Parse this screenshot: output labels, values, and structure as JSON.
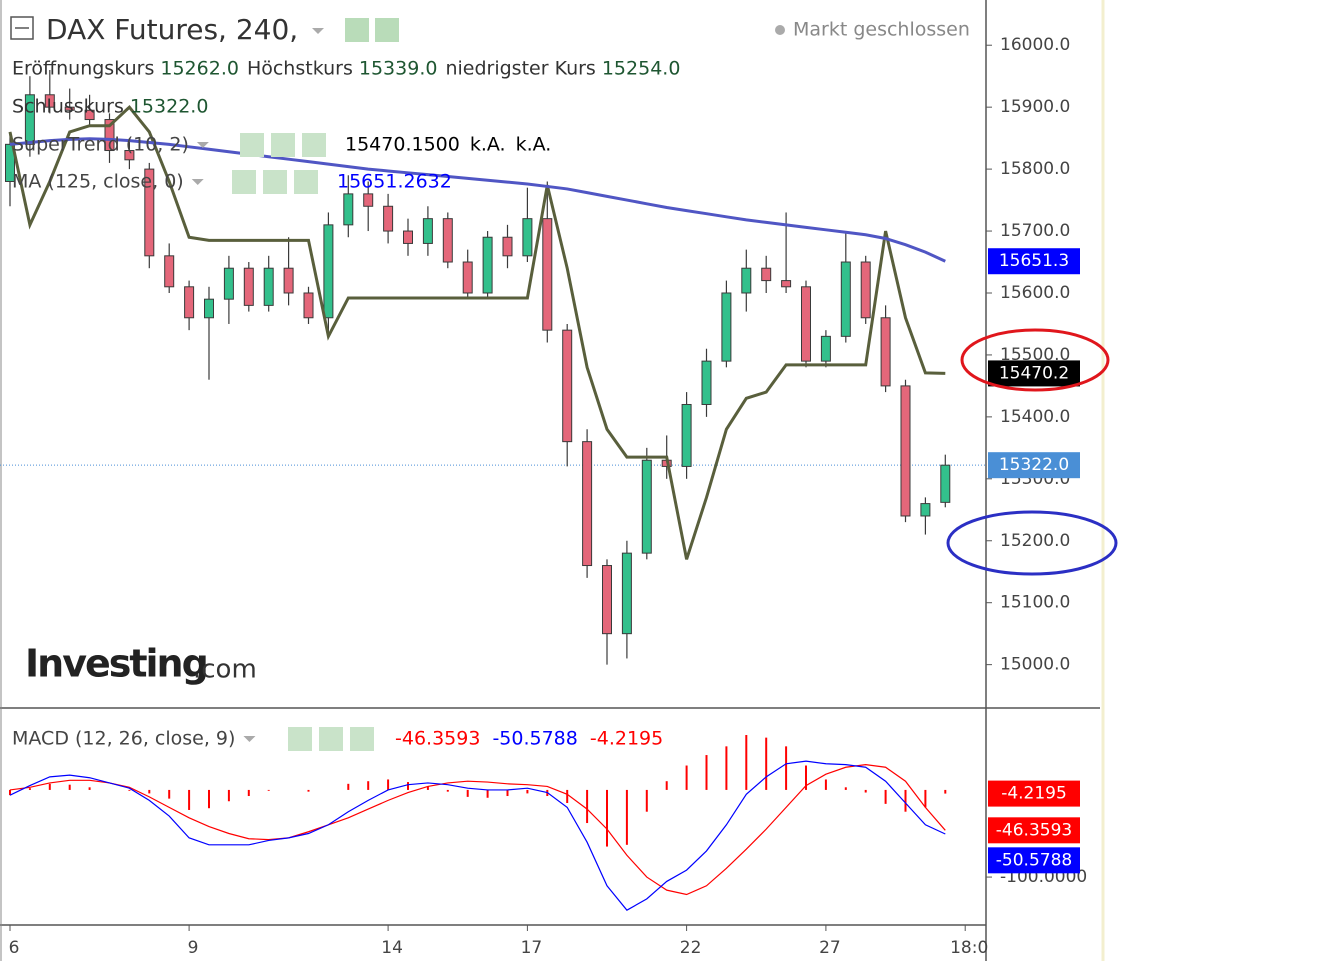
{
  "chart_data": [
    {
      "type": "candlestick",
      "title": "DAX Futures, 240,",
      "status": "Markt geschlossen",
      "watermark": {
        "brand": "Investing",
        "suffix": ".com"
      },
      "ohlc_legend": [
        {
          "name": "Eröffnungskurs",
          "value": 15262,
          "value_label": "15262.0"
        },
        {
          "name": "Höchstkurs",
          "value": 15339,
          "value_label": "15339.0"
        },
        {
          "name": "niedrigster Kurs",
          "value": 15254,
          "value_label": "15254.0"
        },
        {
          "name": "Schlusskurs",
          "value": 15322,
          "value_label": "15322.0"
        }
      ],
      "categories": [
        "6",
        null,
        null,
        null,
        null,
        null,
        null,
        null,
        null,
        "9",
        null,
        null,
        null,
        null,
        null,
        null,
        null,
        null,
        null,
        "14",
        null,
        null,
        null,
        null,
        null,
        null,
        "17",
        null,
        null,
        null,
        null,
        null,
        null,
        null,
        "22",
        null,
        null,
        null,
        null,
        null,
        null,
        "27",
        null,
        null,
        null,
        null,
        null,
        null,
        "18:0"
      ],
      "open": [
        15780,
        15840,
        15920,
        15900,
        15895,
        15880,
        15830,
        15800,
        15660,
        15610,
        15560,
        15590,
        15640,
        15580,
        15640,
        15600,
        15560,
        15710,
        15760,
        15740,
        15700,
        15680,
        15720,
        15650,
        15600,
        15690,
        15660,
        15720,
        15540,
        15360,
        15160,
        15050,
        15180,
        15330,
        15320,
        15420,
        15490,
        15600,
        15640,
        15620,
        15610,
        15490,
        15530,
        15650,
        15560,
        15450,
        15240,
        15262,
        null
      ],
      "high": [
        15860,
        15950,
        15960,
        15930,
        15920,
        15890,
        15850,
        15810,
        15680,
        15620,
        15610,
        15660,
        15650,
        15660,
        15690,
        15610,
        15730,
        15790,
        15780,
        15760,
        15720,
        15740,
        15730,
        15670,
        15700,
        15710,
        15770,
        15780,
        15550,
        15380,
        15170,
        15200,
        15350,
        15370,
        15440,
        15510,
        15620,
        15670,
        15660,
        15730,
        15620,
        15540,
        15700,
        15660,
        15580,
        15460,
        15270,
        15339,
        null
      ],
      "low": [
        15740,
        15820,
        15890,
        15880,
        15870,
        15810,
        15800,
        15640,
        15600,
        15540,
        15460,
        15550,
        15570,
        15570,
        15580,
        15550,
        15530,
        15690,
        15700,
        15680,
        15660,
        15660,
        15640,
        15590,
        15590,
        15640,
        15650,
        15520,
        15320,
        15140,
        15000,
        15010,
        15170,
        15300,
        15300,
        15400,
        15480,
        15570,
        15600,
        15600,
        15480,
        15480,
        15520,
        15550,
        15440,
        15230,
        15210,
        15254,
        null
      ],
      "close": [
        15840,
        15920,
        15900,
        15895,
        15880,
        15830,
        15815,
        15660,
        15610,
        15560,
        15590,
        15640,
        15580,
        15640,
        15600,
        15560,
        15710,
        15760,
        15740,
        15700,
        15680,
        15720,
        15650,
        15600,
        15690,
        15660,
        15720,
        15540,
        15360,
        15160,
        15050,
        15180,
        15330,
        15320,
        15420,
        15490,
        15600,
        15640,
        15620,
        15610,
        15490,
        15530,
        15650,
        15560,
        15450,
        15240,
        15260,
        15322,
        null
      ],
      "up_color": "#33c08c",
      "down_color": "#e4677a",
      "close_axis_label": "15322.0",
      "close_axis_color": "#4a8fd6",
      "series": [
        {
          "name": "SuperTrend (10, 2)",
          "color": "#595f3c",
          "values": [
            15860,
            15710,
            15780,
            15860,
            15870,
            15870,
            15900,
            15860,
            15780,
            15690,
            15685,
            15685,
            15685,
            15685,
            15685,
            15685,
            15530,
            15592,
            15592,
            15592,
            15592,
            15592,
            15592,
            15592,
            15592,
            15592,
            15592,
            15774,
            15640,
            15480,
            15380,
            15335,
            15335,
            15335,
            15170,
            15270,
            15380,
            15430,
            15440,
            15484,
            15484,
            15484,
            15484,
            15484,
            15700,
            15560,
            15471,
            15470.15,
            null
          ],
          "legend_labels": [
            "15470.1500",
            "k.A.",
            "k.A."
          ],
          "legend_color": "#000000",
          "axis_label": "15470.2",
          "axis_color": "#000000"
        },
        {
          "name": "MA (125, close, 0)",
          "color": "#5056c4",
          "values": [
            15840,
            15843,
            15846,
            15848,
            15849,
            15848,
            15846,
            15843,
            15840,
            15836,
            15832,
            15828,
            15824,
            15820,
            15816,
            15812,
            15808,
            15804,
            15800,
            15797,
            15794,
            15791,
            15788,
            15785,
            15782,
            15779,
            15776,
            15772,
            15768,
            15762,
            15756,
            15750,
            15744,
            15738,
            15733,
            15728,
            15723,
            15718,
            15714,
            15710,
            15706,
            15702,
            15698,
            15694,
            15688,
            15678,
            15666,
            15651.2632,
            null
          ],
          "legend_labels": [
            "15651.2632"
          ],
          "legend_color": "#0000ff",
          "axis_label": "15651.3",
          "axis_color": "#0000ff"
        }
      ],
      "ylim": [
        14930,
        16073
      ],
      "yticks": [
        {
          "value": 15000,
          "label": "15000.0"
        },
        {
          "value": 15100,
          "label": "15100.0"
        },
        {
          "value": 15200,
          "label": "15200.0"
        },
        {
          "value": 15300,
          "label": "15300.0"
        },
        {
          "value": 15400,
          "label": "15400.0"
        },
        {
          "value": 15500,
          "label": "15500.0"
        },
        {
          "value": 15600,
          "label": "15600.0"
        },
        {
          "value": 15700,
          "label": "15700.0"
        },
        {
          "value": 15800,
          "label": "15800.0"
        },
        {
          "value": 15900,
          "label": "15900.0"
        },
        {
          "value": 16000,
          "label": "16000.0"
        }
      ],
      "grid": false
    },
    {
      "type": "macd",
      "title": "MACD (12, 26, close, 9)",
      "series": [
        {
          "name": "Histogram",
          "color": "#ff0000",
          "style": "histogram",
          "values": [
            -6,
            2,
            7,
            6,
            3,
            0,
            -1,
            -4,
            -10,
            -23,
            -21,
            -13,
            -7,
            -1,
            0,
            -2,
            0,
            7,
            10,
            12,
            9,
            4,
            -2,
            -8,
            -9,
            -7,
            -4,
            -7,
            -15,
            -38,
            -65,
            -63,
            -25,
            10,
            28,
            40,
            50,
            63,
            60,
            50,
            28,
            12,
            3,
            -3,
            -16,
            -25,
            -20,
            -4.2195,
            null
          ]
        },
        {
          "name": "Signal",
          "color": "#ff0000",
          "style": "line",
          "values": [
            0,
            3,
            8,
            11,
            11,
            8,
            3,
            -8,
            -20,
            -32,
            -42,
            -50,
            -56,
            -57,
            -55,
            -48,
            -40,
            -32,
            -22,
            -12,
            -3,
            4,
            8,
            10,
            9,
            7,
            6,
            4,
            -5,
            -22,
            -45,
            -75,
            -100,
            -115,
            -120,
            -110,
            -90,
            -68,
            -45,
            -20,
            5,
            18,
            26,
            29,
            26,
            10,
            -20,
            -46.3593,
            null
          ]
        },
        {
          "name": "MACD",
          "color": "#0000ff",
          "style": "line",
          "values": [
            -6,
            5,
            15,
            17,
            14,
            8,
            2,
            -12,
            -30,
            -55,
            -63,
            -63,
            -63,
            -58,
            -55,
            -50,
            -40,
            -25,
            -12,
            0,
            6,
            8,
            6,
            2,
            0,
            0,
            2,
            -3,
            -20,
            -60,
            -110,
            -138,
            -125,
            -105,
            -92,
            -70,
            -40,
            -5,
            15,
            30,
            33,
            30,
            29,
            26,
            10,
            -15,
            -40,
            -50.5788,
            null
          ]
        }
      ],
      "legend_order": [
        1,
        2,
        0
      ],
      "ylim": [
        -155,
        94
      ],
      "yticks": [
        {
          "value": -100,
          "label": "-100.0000"
        }
      ]
    }
  ]
}
